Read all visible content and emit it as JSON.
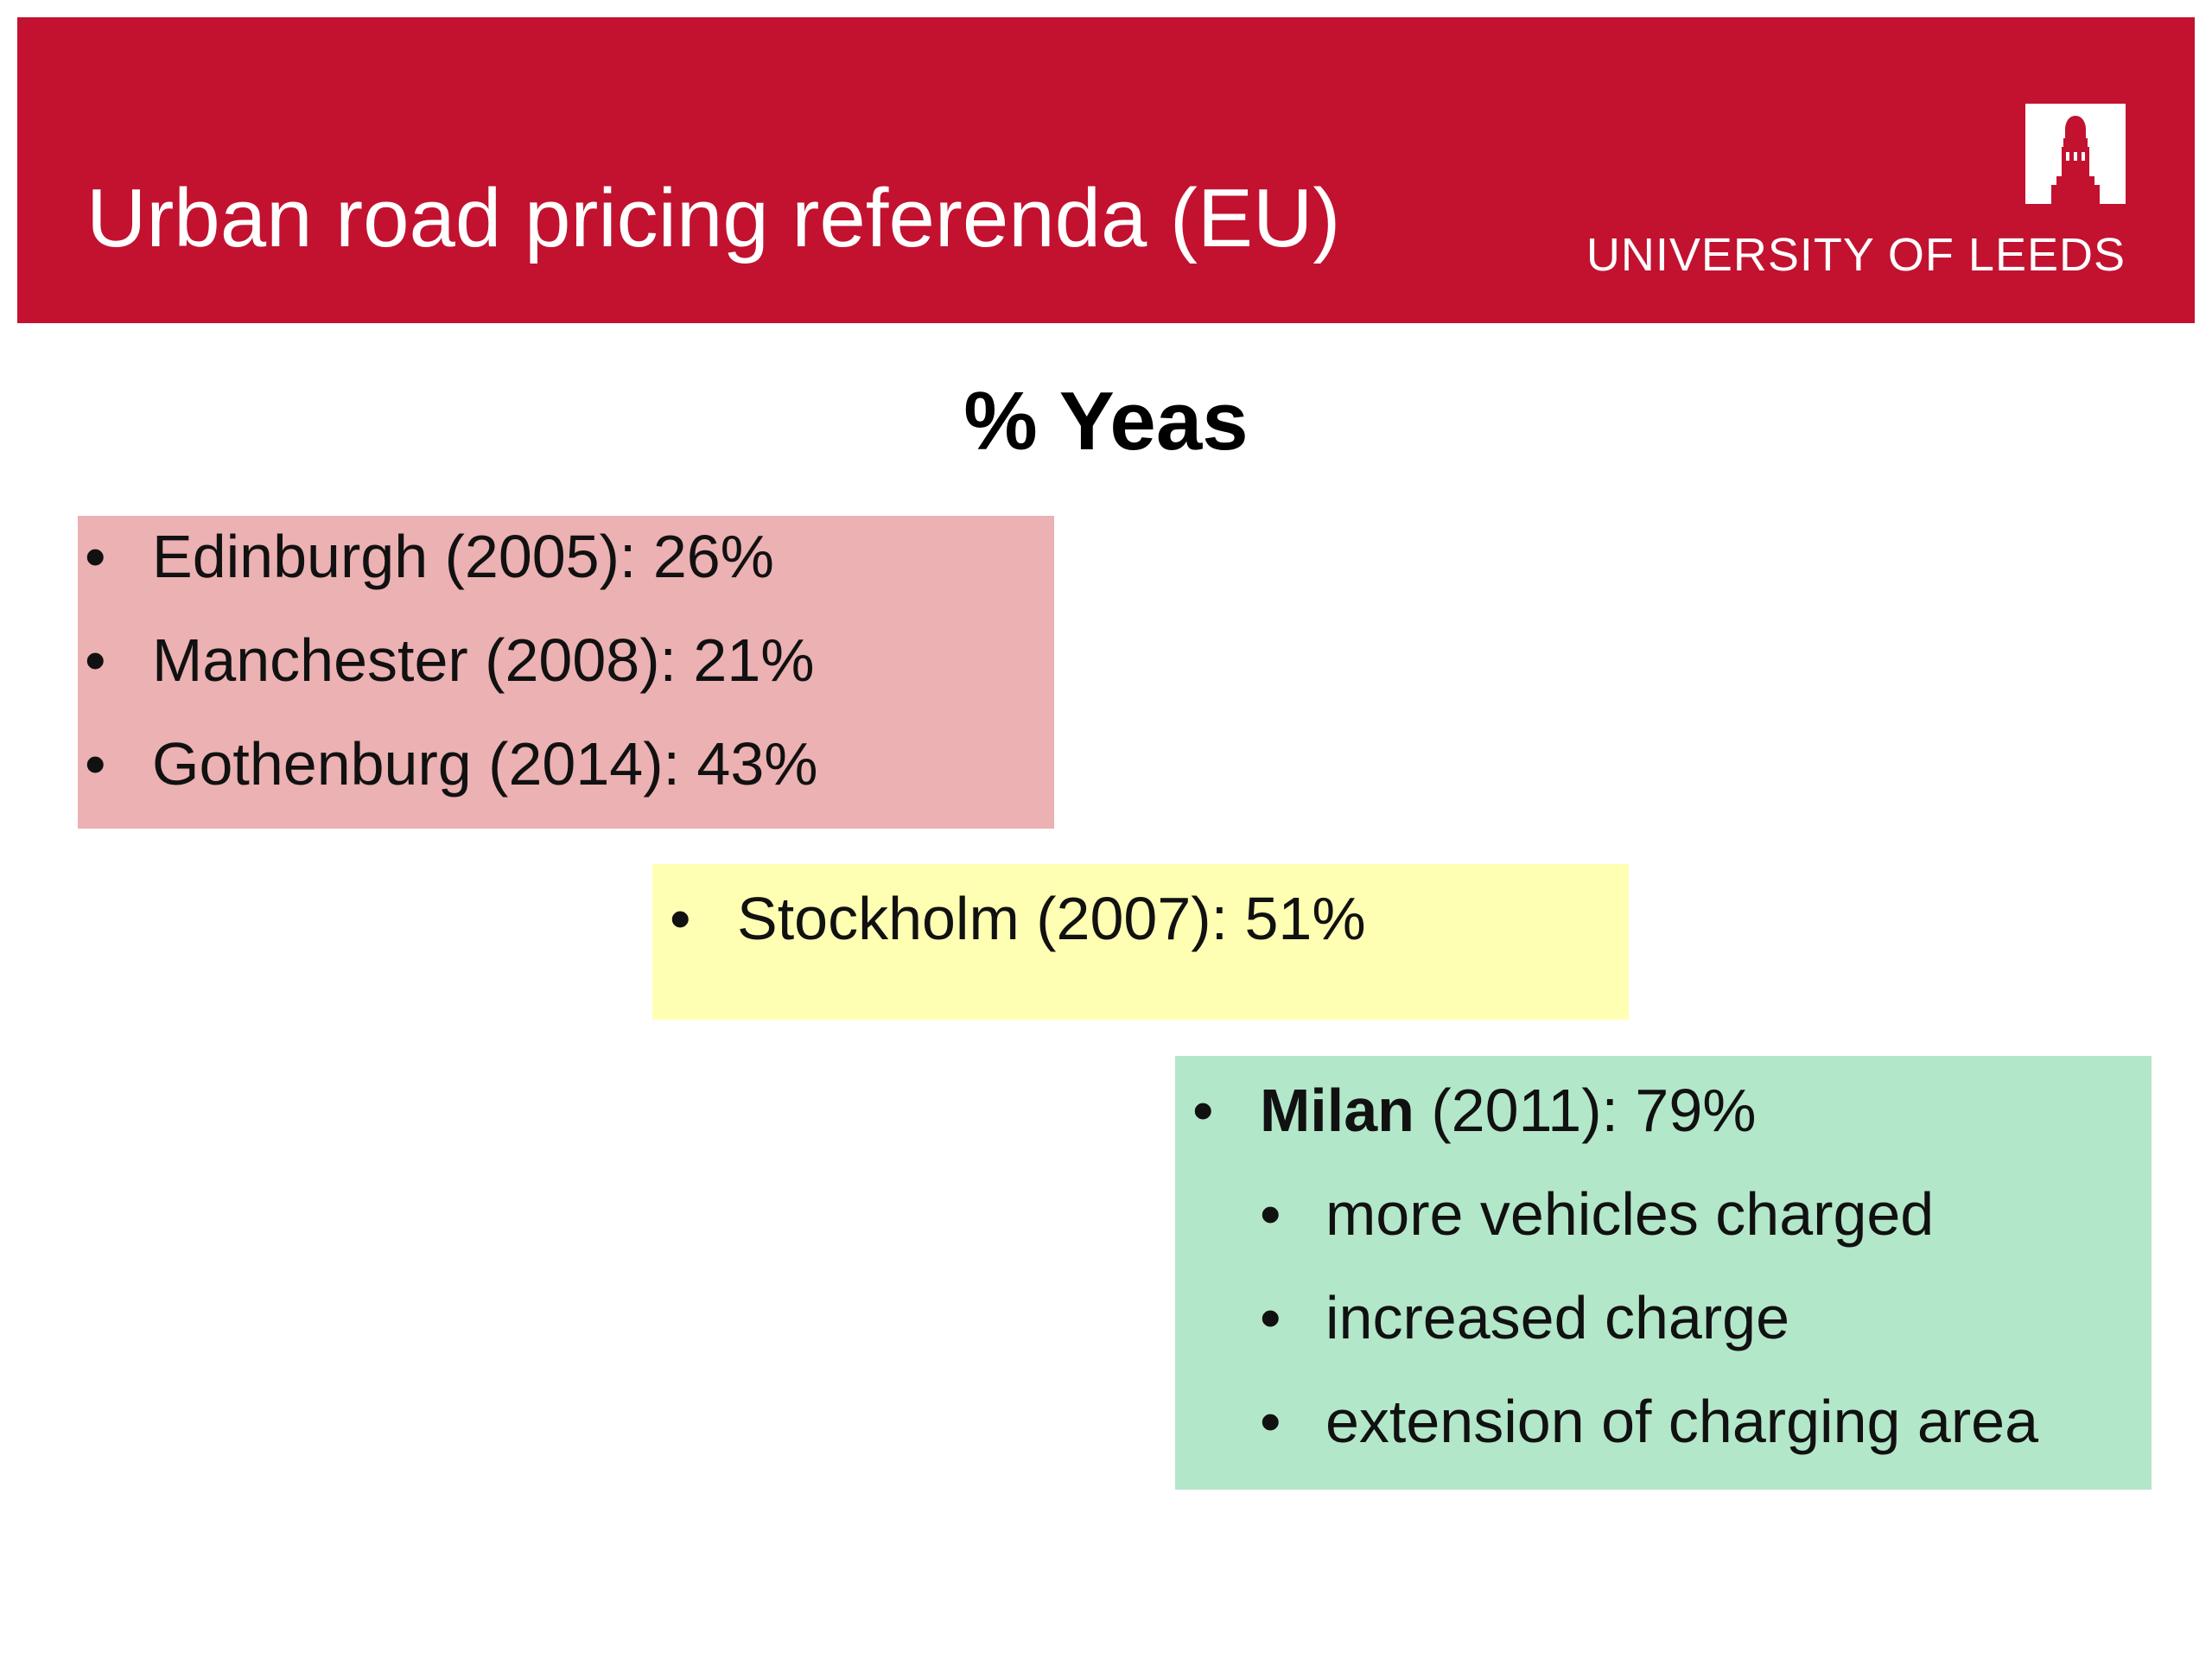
{
  "header": {
    "title": "Urban road pricing referenda (EU)",
    "logo_text": "UNIVERSITY OF LEEDS",
    "logo_icon": "parkinson-tower-icon",
    "background_color": "#c21230"
  },
  "subtitle": "% Yeas",
  "bullet_symbol": "•",
  "groups": {
    "red": {
      "color": "#ecb1b2",
      "items": [
        "Edinburgh (2005): 26%",
        "Manchester (2008): 21%",
        "Gothenburg (2014): 43%"
      ]
    },
    "yellow": {
      "color": "#ffffb3",
      "items": [
        "Stockholm (2007): 51%"
      ]
    },
    "green": {
      "color": "#b3e7c9",
      "main": {
        "city": "Milan",
        "detail": " (2011): 79%"
      },
      "sub_items": [
        "more vehicles charged",
        "increased charge",
        "extension of charging area"
      ]
    }
  }
}
